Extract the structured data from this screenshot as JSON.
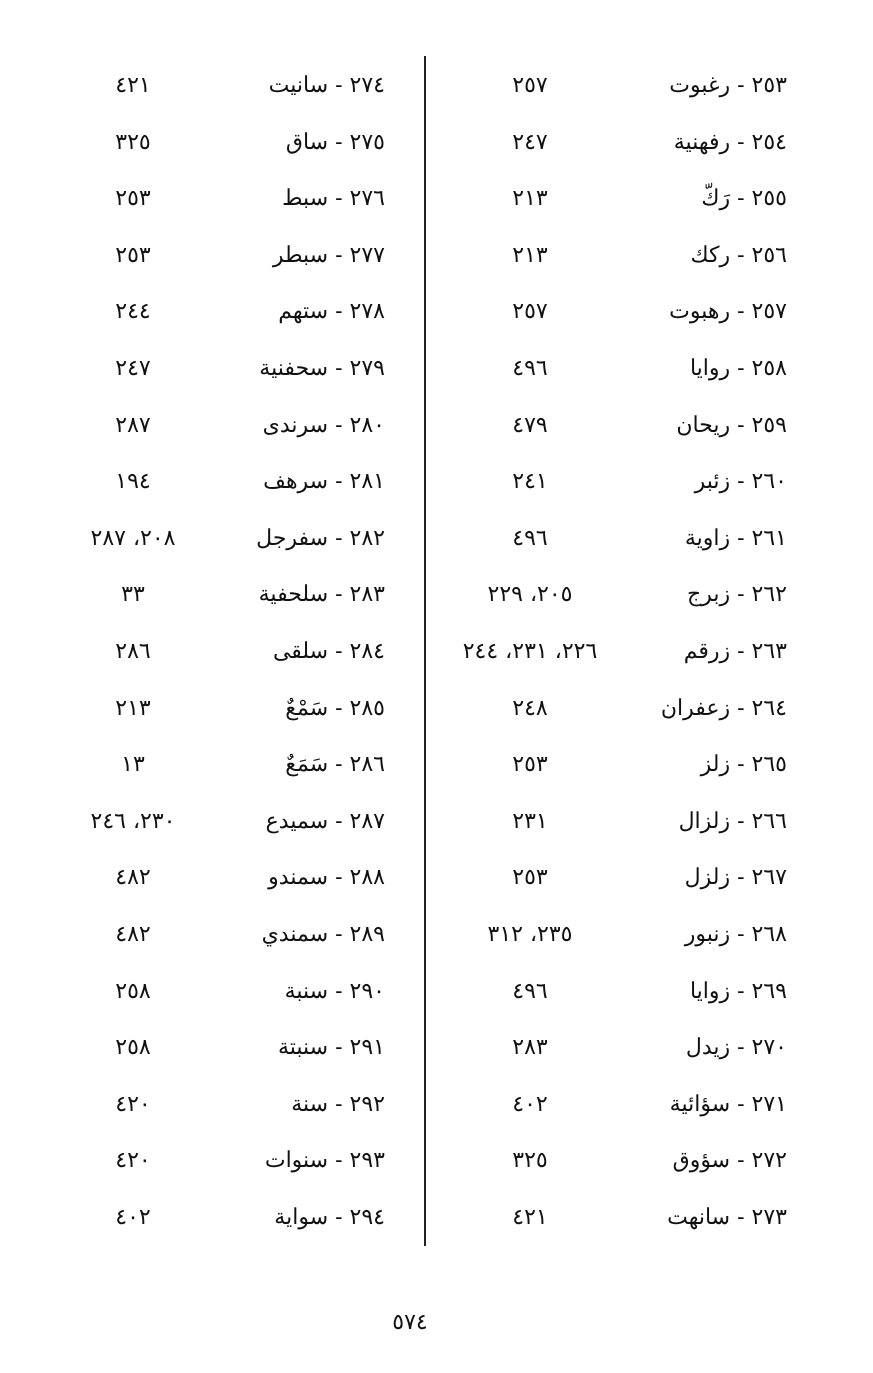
{
  "right_column": [
    {
      "term": "٢٥٣ - رغبوت",
      "pages": "٢٥٧"
    },
    {
      "term": "٢٥٤ - رفهنية",
      "pages": "٢٤٧"
    },
    {
      "term": "٢٥٥ - رَكّ",
      "pages": "٢١٣"
    },
    {
      "term": "٢٥٦ - ركك",
      "pages": "٢١٣"
    },
    {
      "term": "٢٥٧ - رهبوت",
      "pages": "٢٥٧"
    },
    {
      "term": "٢٥٨ - روايا",
      "pages": "٤٩٦"
    },
    {
      "term": "٢٥٩ - ريحان",
      "pages": "٤٧٩"
    },
    {
      "term": "٢٦٠ - زئبر",
      "pages": "٢٤١"
    },
    {
      "term": "٢٦١ - زاوية",
      "pages": "٤٩٦"
    },
    {
      "term": "٢٦٢ - زبرج",
      "pages": "٢٠٥، ٢٢٩"
    },
    {
      "term": "٢٦٣ - زرقم",
      "pages": "٢٢٦، ٢٣١، ٢٤٤"
    },
    {
      "term": "٢٦٤ - زعفران",
      "pages": "٢٤٨"
    },
    {
      "term": "٢٦٥ - زلز",
      "pages": "٢٥٣"
    },
    {
      "term": "٢٦٦ - زلزال",
      "pages": "٢٣١"
    },
    {
      "term": "٢٦٧ - زلزل",
      "pages": "٢٥٣"
    },
    {
      "term": "٢٦٨ - زنبور",
      "pages": "٢٣٥، ٣١٢"
    },
    {
      "term": "٢٦٩ - زوايا",
      "pages": "٤٩٦"
    },
    {
      "term": "٢٧٠ - زيدل",
      "pages": "٢٨٣"
    },
    {
      "term": "٢٧١ - سؤائية",
      "pages": "٤٠٢"
    },
    {
      "term": "٢٧٢ - سؤوق",
      "pages": "٣٢٥"
    },
    {
      "term": "٢٧٣ - سانهت",
      "pages": "٤٢١"
    }
  ],
  "left_column": [
    {
      "term": "٢٧٤ - سانيت",
      "pages": "٤٢١"
    },
    {
      "term": "٢٧٥ - ساق",
      "pages": "٣٢٥"
    },
    {
      "term": "٢٧٦ - سبط",
      "pages": "٢٥٣"
    },
    {
      "term": "٢٧٧ - سبطر",
      "pages": "٢٥٣"
    },
    {
      "term": "٢٧٨ - ستهم",
      "pages": "٢٤٤"
    },
    {
      "term": "٢٧٩ - سحفنية",
      "pages": "٢٤٧"
    },
    {
      "term": "٢٨٠ - سرندى",
      "pages": "٢٨٧"
    },
    {
      "term": "٢٨١ - سرهف",
      "pages": "١٩٤"
    },
    {
      "term": "٢٨٢ - سفرجل",
      "pages": "٢٠٨، ٢٨٧"
    },
    {
      "term": "٢٨٣ - سلحفية",
      "pages": "٣٣"
    },
    {
      "term": "٢٨٤ - سلقى",
      "pages": "٢٨٦"
    },
    {
      "term": "٢٨٥ - سَمْعٌ",
      "pages": "٢١٣"
    },
    {
      "term": "٢٨٦ - سَمَعٌ",
      "pages": "١٣"
    },
    {
      "term": "٢٨٧ - سميدع",
      "pages": "٢٣٠، ٢٤٦"
    },
    {
      "term": "٢٨٨ - سمندو",
      "pages": "٤٨٢"
    },
    {
      "term": "٢٨٩ - سمندي",
      "pages": "٤٨٢"
    },
    {
      "term": "٢٩٠ - سنبة",
      "pages": "٢٥٨"
    },
    {
      "term": "٢٩١ - سنبتة",
      "pages": "٢٥٨"
    },
    {
      "term": "٢٩٢ - سنة",
      "pages": "٤٢٠"
    },
    {
      "term": "٢٩٣ - سنوات",
      "pages": "٤٢٠"
    },
    {
      "term": "٢٩٤ - سواية",
      "pages": "٤٠٢"
    }
  ],
  "page_number": "٥٧٤"
}
